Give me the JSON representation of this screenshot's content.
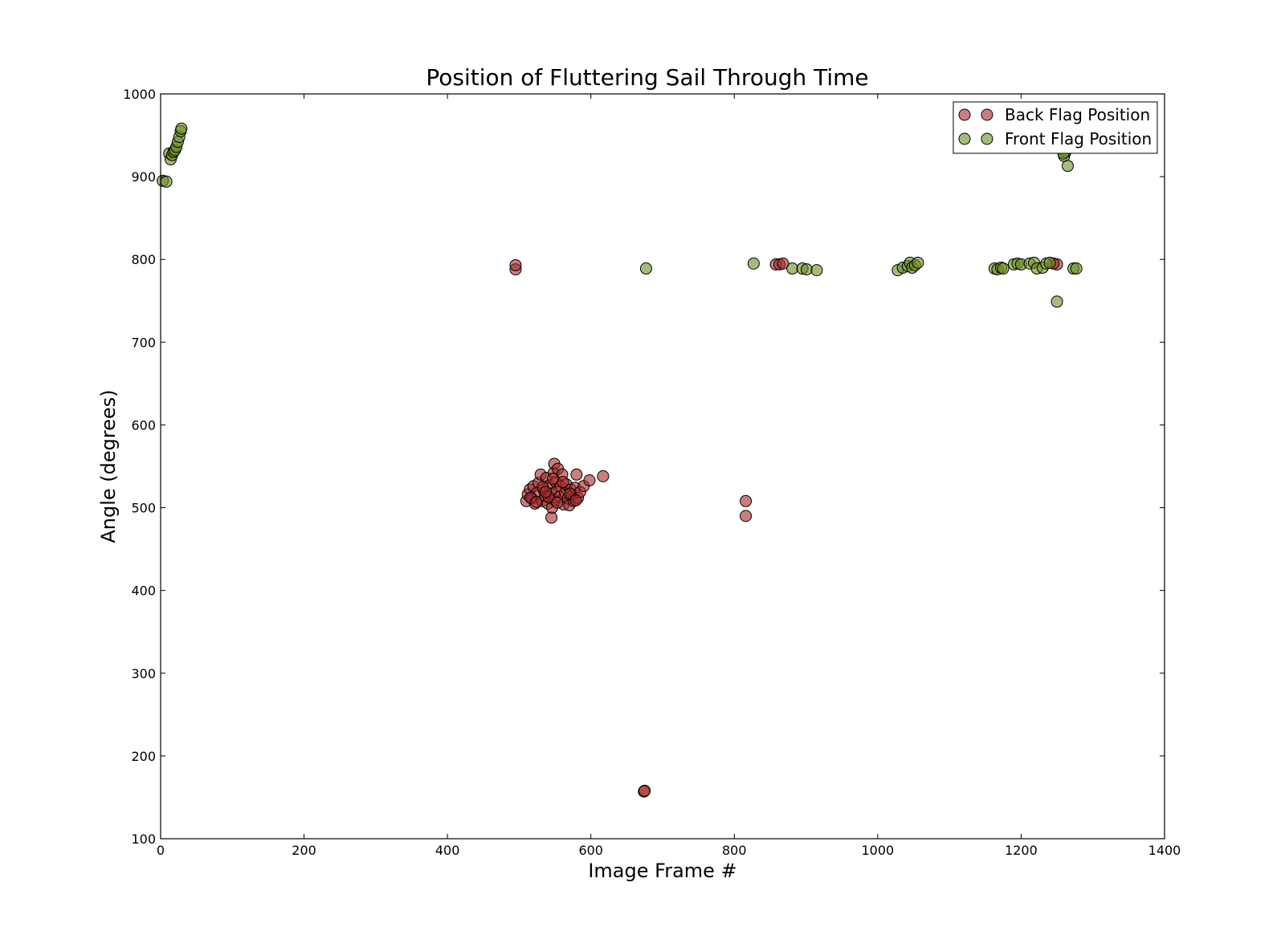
{
  "chart_data": {
    "type": "scatter",
    "title": "Position of Fluttering Sail Through Time",
    "xlabel": "Image Frame #",
    "ylabel": "Angle (degrees)",
    "xlim": [
      0,
      1400
    ],
    "ylim": [
      100,
      1000
    ],
    "xticks": [
      0,
      200,
      400,
      600,
      800,
      1000,
      1200,
      1400
    ],
    "yticks": [
      100,
      200,
      300,
      400,
      500,
      600,
      700,
      800,
      900,
      1000
    ],
    "grid": false,
    "legend_position": "top-right",
    "series": [
      {
        "name": "Back Flag Position",
        "color": "#a52a2a",
        "alpha": 0.6,
        "points": [
          [
            495,
            788
          ],
          [
            495,
            793
          ],
          [
            674,
            157
          ],
          [
            675,
            158
          ],
          [
            858,
            794
          ],
          [
            863,
            794
          ],
          [
            868,
            795
          ],
          [
            816,
            508
          ],
          [
            816,
            490
          ],
          [
            1250,
            794
          ],
          [
            1245,
            795
          ],
          [
            510,
            508
          ],
          [
            512,
            516
          ],
          [
            515,
            522
          ],
          [
            518,
            511
          ],
          [
            520,
            526
          ],
          [
            522,
            505
          ],
          [
            525,
            518
          ],
          [
            527,
            530
          ],
          [
            530,
            540
          ],
          [
            532,
            508
          ],
          [
            534,
            522
          ],
          [
            536,
            514
          ],
          [
            538,
            536
          ],
          [
            540,
            505
          ],
          [
            542,
            527
          ],
          [
            544,
            517
          ],
          [
            545,
            488
          ],
          [
            546,
            500
          ],
          [
            548,
            542
          ],
          [
            549,
            553
          ],
          [
            550,
            509
          ],
          [
            551,
            531
          ],
          [
            552,
            520
          ],
          [
            554,
            547
          ],
          [
            556,
            513
          ],
          [
            558,
            526
          ],
          [
            560,
            540
          ],
          [
            562,
            504
          ],
          [
            564,
            518
          ],
          [
            566,
            528
          ],
          [
            568,
            511
          ],
          [
            570,
            503
          ],
          [
            572,
            522
          ],
          [
            574,
            515
          ],
          [
            576,
            508
          ],
          [
            578,
            524
          ],
          [
            580,
            540
          ],
          [
            582,
            512
          ],
          [
            585,
            519
          ],
          [
            590,
            526
          ],
          [
            598,
            533
          ],
          [
            617,
            538
          ],
          [
            516,
            512
          ],
          [
            524,
            507
          ],
          [
            533,
            525
          ],
          [
            541,
            513
          ],
          [
            553,
            506
          ],
          [
            561,
            531
          ],
          [
            571,
            517
          ],
          [
            579,
            509
          ],
          [
            547,
            535
          ],
          [
            537,
            519
          ]
        ]
      },
      {
        "name": "Front Flag Position",
        "color": "#6b8e23",
        "alpha": 0.6,
        "points": [
          [
            3,
            895
          ],
          [
            8,
            894
          ],
          [
            12,
            928
          ],
          [
            14,
            921
          ],
          [
            16,
            926
          ],
          [
            18,
            930
          ],
          [
            20,
            932
          ],
          [
            22,
            936
          ],
          [
            24,
            942
          ],
          [
            26,
            948
          ],
          [
            28,
            955
          ],
          [
            29,
            958
          ],
          [
            677,
            789
          ],
          [
            827,
            795
          ],
          [
            881,
            789
          ],
          [
            895,
            789
          ],
          [
            901,
            788
          ],
          [
            915,
            787
          ],
          [
            1028,
            787
          ],
          [
            1035,
            790
          ],
          [
            1042,
            792
          ],
          [
            1045,
            796
          ],
          [
            1048,
            790
          ],
          [
            1052,
            793
          ],
          [
            1056,
            796
          ],
          [
            1163,
            789
          ],
          [
            1167,
            788
          ],
          [
            1172,
            790
          ],
          [
            1175,
            789
          ],
          [
            1190,
            794
          ],
          [
            1195,
            795
          ],
          [
            1200,
            794
          ],
          [
            1212,
            795
          ],
          [
            1218,
            796
          ],
          [
            1222,
            789
          ],
          [
            1230,
            790
          ],
          [
            1235,
            795
          ],
          [
            1240,
            796
          ],
          [
            1250,
            749
          ],
          [
            1260,
            925
          ],
          [
            1262,
            930
          ],
          [
            1265,
            913
          ],
          [
            1273,
            789
          ],
          [
            1277,
            789
          ],
          [
            1259,
            928
          ]
        ]
      }
    ]
  }
}
